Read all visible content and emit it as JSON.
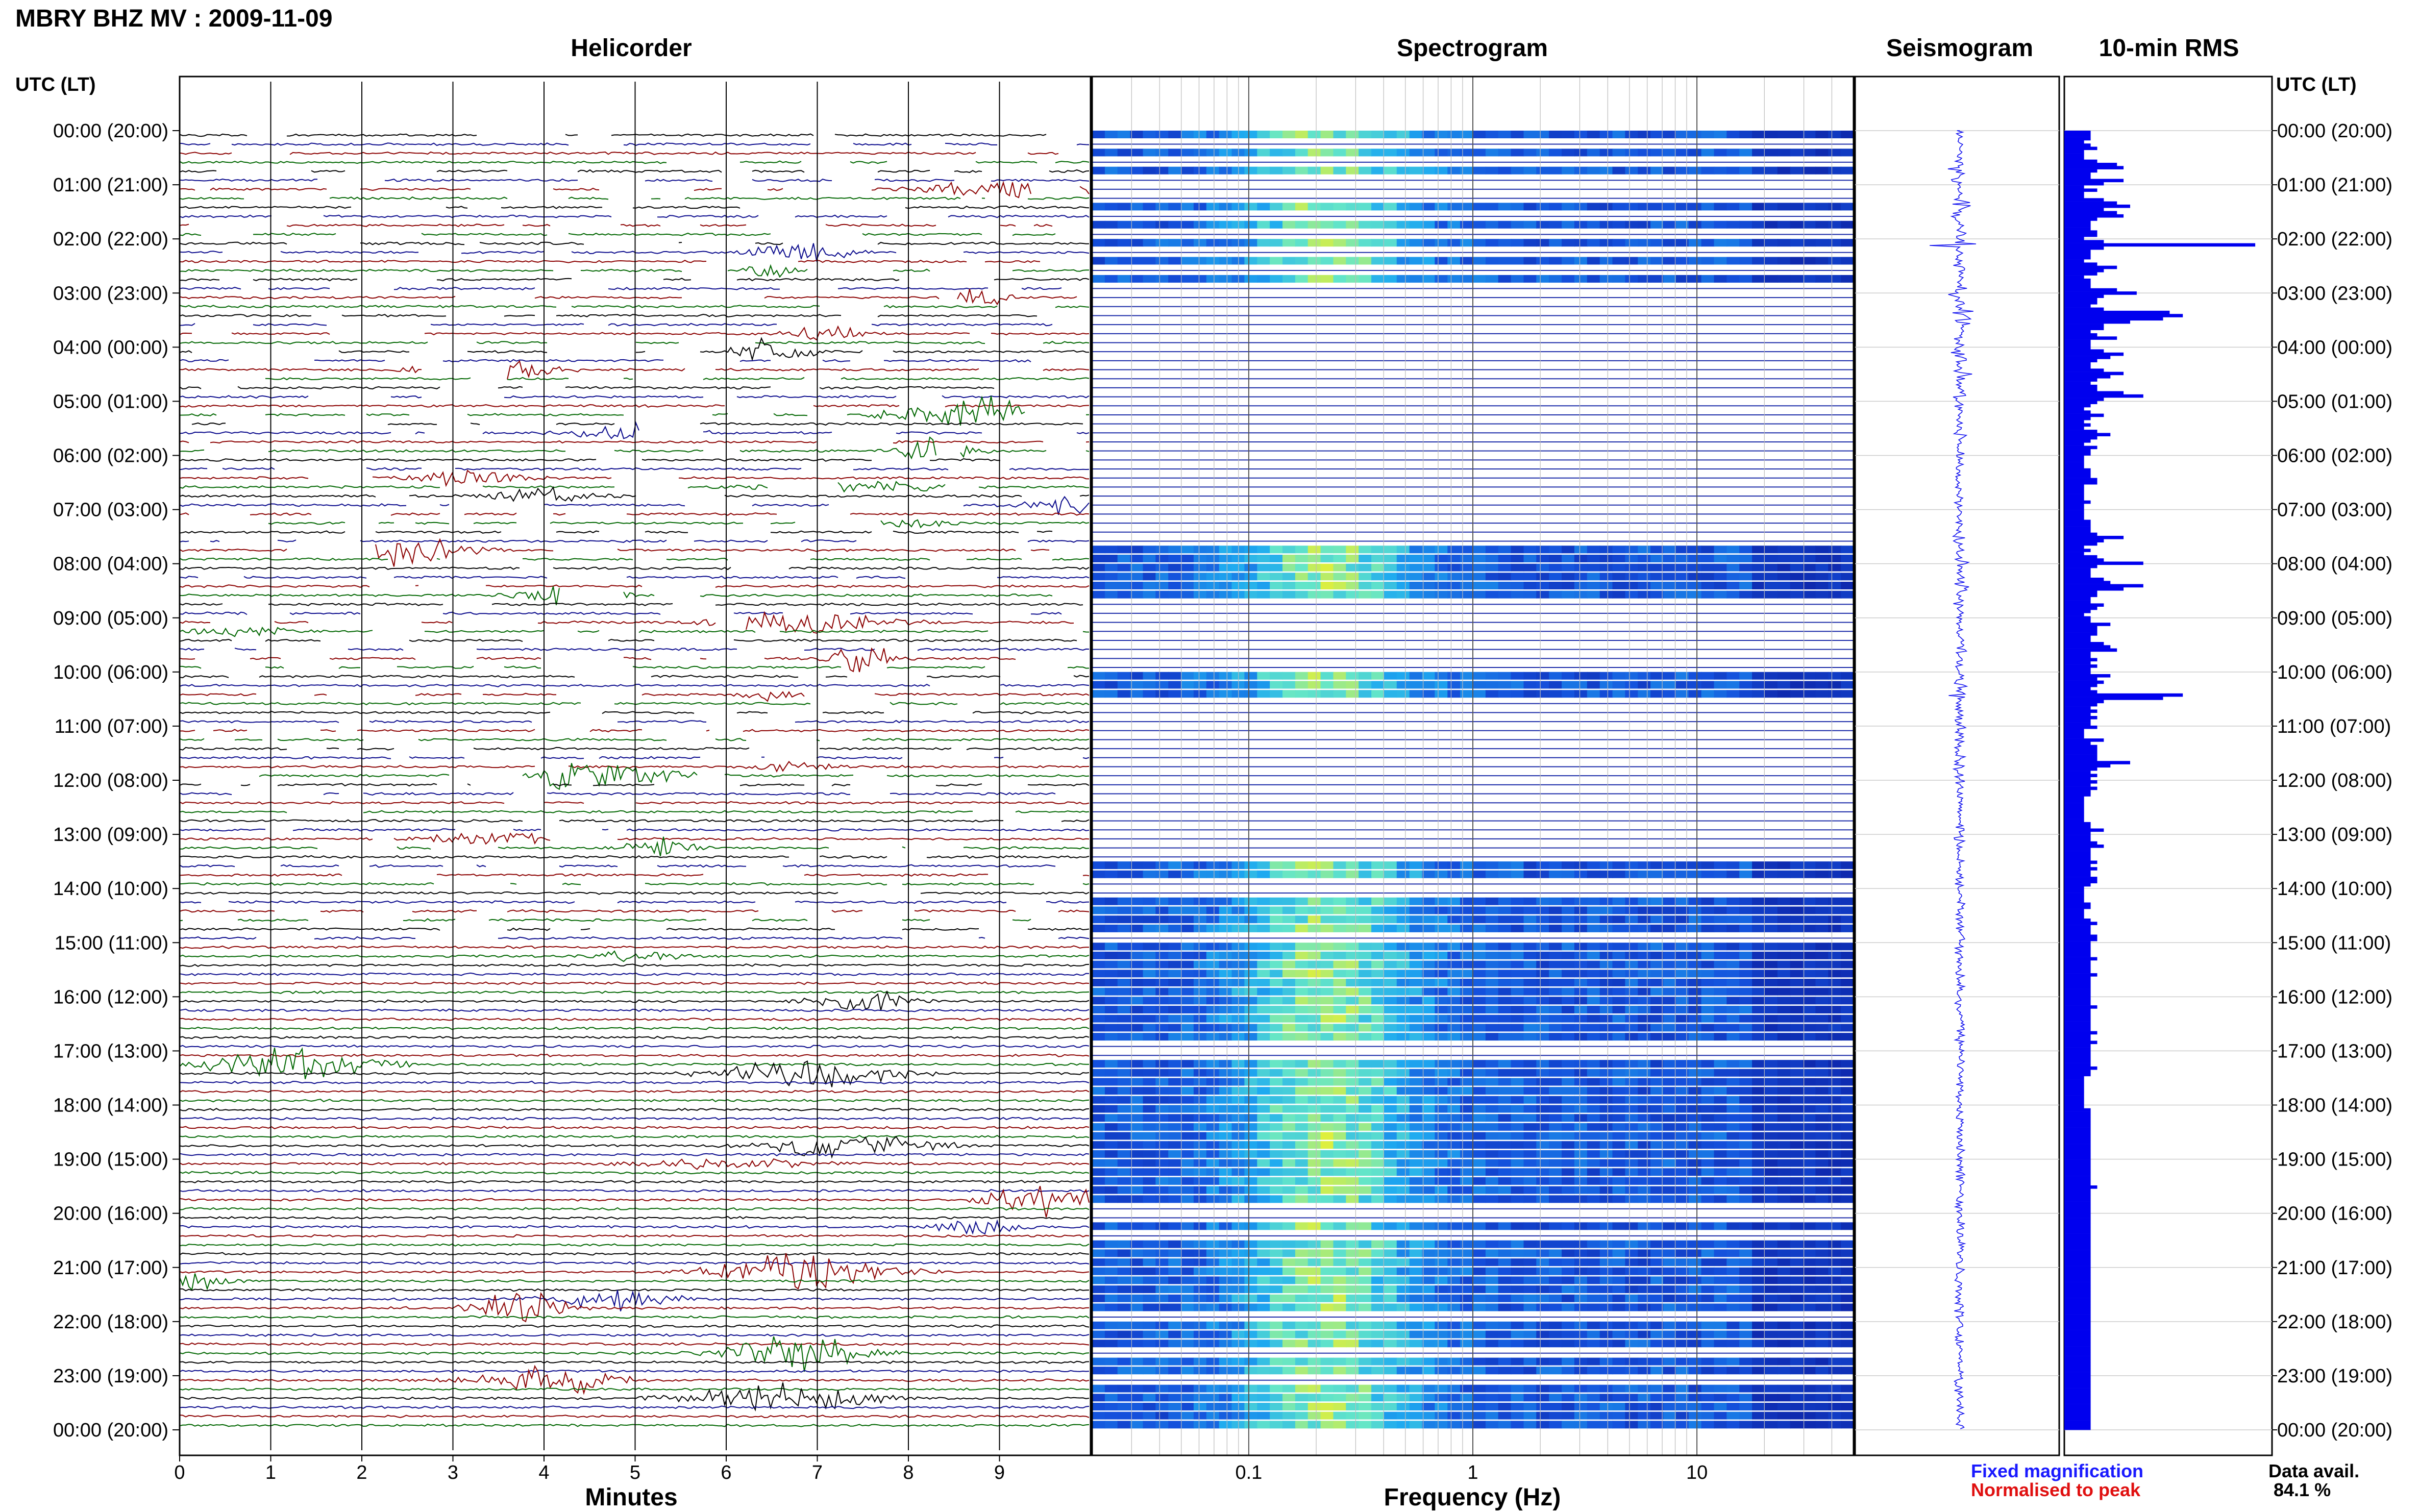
{
  "header": {
    "title": "MBRY BHZ MV : 2009-11-09"
  },
  "panels": {
    "helicorder": "Helicorder",
    "spectrogram": "Spectrogram",
    "seismogram": "Seismogram",
    "rms": "10-min RMS"
  },
  "axes": {
    "left_header": "UTC (LT)",
    "right_header": "UTC (LT)",
    "minutes_label": "Minutes",
    "frequency_label": "Frequency (Hz)",
    "minutes_ticks": [
      "0",
      "1",
      "2",
      "3",
      "4",
      "5",
      "6",
      "7",
      "8",
      "9"
    ],
    "frequency_ticks": [
      "0.1",
      "1",
      "10"
    ],
    "time_labels": [
      "00:00 (20:00)",
      "01:00 (21:00)",
      "02:00 (22:00)",
      "03:00 (23:00)",
      "04:00 (00:00)",
      "05:00 (01:00)",
      "06:00 (02:00)",
      "07:00 (03:00)",
      "08:00 (04:00)",
      "09:00 (05:00)",
      "10:00 (06:00)",
      "11:00 (07:00)",
      "12:00 (08:00)",
      "13:00 (09:00)",
      "14:00 (10:00)",
      "15:00 (11:00)",
      "16:00 (12:00)",
      "17:00 (13:00)",
      "18:00 (14:00)",
      "19:00 (15:00)",
      "20:00 (16:00)",
      "21:00 (17:00)",
      "22:00 (18:00)",
      "23:00 (19:00)",
      "00:00 (20:00)"
    ]
  },
  "legend": {
    "fixed": "Fixed magnification",
    "normalised": "Normalised to peak",
    "fixed_color": "#1a1aff",
    "normalised_color": "#e01010"
  },
  "availability": {
    "label": "Data avail.",
    "value": "84.1 %"
  },
  "colors": {
    "trace_cycle": [
      "#000000",
      "#0a0a8c",
      "#8b0000",
      "#006600"
    ],
    "rms_bar": "#0000ee",
    "seismo": "#1010ee",
    "spectro_low": "#0a1aa0",
    "spectro_high": "#eef02a"
  },
  "chart_data": {
    "type": "bar",
    "title": "10-min RMS",
    "xlabel": "",
    "ylabel": "UTC (LT)",
    "bin_minutes": 10,
    "values": [
      4,
      4,
      4,
      3,
      4,
      5,
      3,
      3,
      3,
      5,
      8,
      9,
      5,
      4,
      4,
      9,
      6,
      3,
      5,
      3,
      3,
      6,
      8,
      10,
      6,
      8,
      9,
      5,
      4,
      4,
      4,
      5,
      5,
      3,
      6,
      29,
      6,
      4,
      4,
      4,
      3,
      5,
      8,
      6,
      5,
      3,
      4,
      4,
      4,
      8,
      11,
      6,
      5,
      5,
      4,
      6,
      16,
      18,
      15,
      10,
      6,
      6,
      4,
      5,
      8,
      4,
      4,
      4,
      6,
      9,
      7,
      5,
      4,
      4,
      6,
      9,
      7,
      5,
      4,
      5,
      5,
      9,
      12,
      6,
      5,
      4,
      3,
      4,
      6,
      4,
      3,
      4,
      3,
      5,
      7,
      5,
      4,
      3,
      5,
      4,
      4,
      3,
      3,
      3,
      3,
      4,
      4,
      4,
      5,
      5,
      3,
      3,
      3,
      3,
      3,
      4,
      3,
      3,
      3,
      3,
      3,
      4,
      4,
      4,
      4,
      5,
      9,
      6,
      5,
      3,
      4,
      3,
      5,
      6,
      12,
      5,
      4,
      4,
      4,
      6,
      7,
      12,
      9,
      5,
      5,
      4,
      4,
      6,
      5,
      4,
      3,
      4,
      4,
      7,
      5,
      5,
      5,
      4,
      4,
      6,
      7,
      8,
      4,
      4,
      5,
      4,
      5,
      4,
      4,
      7,
      5,
      6,
      5,
      4,
      5,
      18,
      15,
      6,
      5,
      4,
      5,
      4,
      5,
      4,
      4,
      5,
      3,
      3,
      3,
      6,
      4,
      5,
      5,
      5,
      5,
      5,
      10,
      7,
      5,
      4,
      5,
      4,
      5,
      4,
      5,
      4,
      4,
      3,
      3,
      3,
      3,
      3,
      3,
      3,
      3,
      4,
      4,
      6,
      4,
      4,
      4,
      5,
      6,
      4,
      4,
      4,
      4,
      5,
      4,
      5,
      4,
      4,
      5,
      5,
      4,
      3,
      3,
      3,
      3,
      3,
      4,
      4,
      3,
      3,
      3,
      4,
      5,
      4,
      4,
      4,
      5,
      5,
      4,
      4,
      4,
      4,
      4,
      5,
      4,
      4,
      4,
      4,
      5,
      4,
      4,
      4,
      4,
      4,
      4,
      4,
      4,
      4,
      5,
      4,
      4,
      4,
      4,
      4,
      4,
      4,
      5,
      4,
      4,
      5,
      4,
      4,
      4,
      4,
      4,
      4,
      4,
      5,
      4,
      4,
      3,
      3,
      3,
      3,
      3,
      3,
      3,
      3,
      3,
      3,
      4,
      4,
      4,
      4,
      4,
      4,
      4,
      4,
      4,
      4,
      4,
      4,
      4,
      4,
      4,
      4,
      4,
      4,
      4,
      4,
      4,
      4,
      4,
      4,
      5,
      4,
      4,
      4,
      4,
      4,
      4,
      4,
      4,
      4,
      4,
      4,
      4,
      4,
      4,
      4,
      4,
      4,
      4,
      4,
      4,
      4,
      4,
      4,
      4,
      4,
      4,
      4,
      4,
      4,
      4,
      4,
      4,
      4,
      4,
      4,
      4,
      4,
      4,
      4,
      4,
      4,
      4,
      4,
      4,
      4,
      4,
      4,
      4,
      4,
      4,
      4,
      4,
      4,
      4,
      4,
      4,
      4,
      4,
      4,
      4,
      4,
      4,
      4,
      4,
      4,
      4,
      4,
      4,
      4,
      4,
      4,
      4,
      4,
      4,
      4
    ]
  }
}
